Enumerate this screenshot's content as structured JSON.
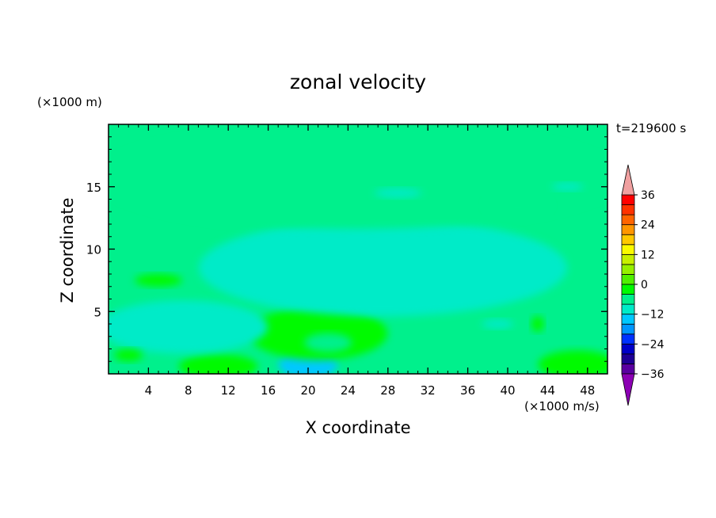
{
  "chart_data": {
    "type": "heatmap",
    "title": "zonal velocity",
    "xlabel": "X coordinate",
    "ylabel": "Z coordinate",
    "y_unit": "(×1000 m)",
    "colorbar_unit": "(×1000 m/s)",
    "time_label": "t=219600 s",
    "xlim": [
      0,
      50
    ],
    "ylim": [
      0,
      20
    ],
    "x_ticks": [
      4,
      8,
      12,
      16,
      20,
      24,
      28,
      32,
      36,
      40,
      44,
      48
    ],
    "y_ticks": [
      5,
      10,
      15
    ],
    "colorbar": {
      "range": [
        -42,
        42
      ],
      "step": 6,
      "tick_values": [
        36,
        24,
        12,
        0,
        -12,
        -24,
        -36
      ],
      "tick_labels": [
        "36",
        "24",
        "12",
        "0",
        "−12",
        "−24",
        "−36"
      ],
      "colors": [
        "#8c00b4",
        "#5a00a0",
        "#1e0096",
        "#0000c8",
        "#0032ff",
        "#0096ff",
        "#00c8ff",
        "#00ebc8",
        "#00f08c",
        "#00fa00",
        "#50f000",
        "#96f000",
        "#c8f000",
        "#fafa00",
        "#ffc800",
        "#ff9600",
        "#ff6400",
        "#ff3200",
        "#ff0000",
        "#f0a0a0"
      ],
      "extend": "both"
    },
    "field_summary": [
      {
        "z_range": [
          0,
          1.5
        ],
        "x_range": [
          18,
          22
        ],
        "value_approx": -10
      },
      {
        "z_range": [
          0,
          1.2
        ],
        "x_range": [
          8,
          14
        ],
        "value_approx": 10
      },
      {
        "z_range": [
          0,
          1.5
        ],
        "x_range": [
          44,
          50
        ],
        "value_approx": 10
      },
      {
        "z_range": [
          1.5,
          5
        ],
        "x_range": [
          15,
          27
        ],
        "value_approx": 6
      },
      {
        "z_range": [
          2,
          5.5
        ],
        "x_range": [
          0,
          15
        ],
        "value_approx": -6
      },
      {
        "z_range": [
          5,
          12
        ],
        "x_range": [
          10,
          45
        ],
        "value_approx": -3
      },
      {
        "z_range": [
          12,
          19.5
        ],
        "x_range": [
          0,
          50
        ],
        "value_approx": 1
      }
    ]
  }
}
